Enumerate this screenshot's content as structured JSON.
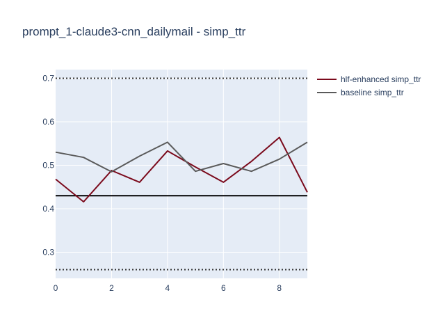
{
  "chart_data": {
    "type": "line",
    "title": "prompt_1-claude3-cnn_dailymail - simp_ttr",
    "xlabel": "",
    "ylabel": "",
    "xlim": [
      0,
      9
    ],
    "ylim": [
      0.24,
      0.72
    ],
    "x_ticks": [
      0,
      2,
      4,
      6,
      8
    ],
    "x_tick_labels": [
      "0",
      "2",
      "4",
      "6",
      "8"
    ],
    "y_ticks": [
      0.3,
      0.4,
      0.5,
      0.6,
      0.7
    ],
    "y_tick_labels": [
      "0.3",
      "0.4",
      "0.5",
      "0.6",
      "0.7"
    ],
    "grid": true,
    "legend_position": "top-right",
    "x": [
      0,
      1,
      2,
      3,
      4,
      5,
      6,
      7,
      8,
      9
    ],
    "series": [
      {
        "name": "hlf-enhanced simp_ttr",
        "color": "#7b0a1c",
        "values": [
          0.468,
          0.416,
          0.488,
          0.461,
          0.533,
          0.496,
          0.461,
          0.509,
          0.564,
          0.438
        ]
      },
      {
        "name": "baseline simp_ttr",
        "color": "#5a5a5a",
        "values": [
          0.53,
          0.518,
          0.485,
          0.521,
          0.553,
          0.486,
          0.504,
          0.486,
          0.514,
          0.553
        ]
      }
    ],
    "reference_lines": [
      {
        "y": 0.7,
        "style": "dotted",
        "color": "#333333"
      },
      {
        "y": 0.43,
        "style": "solid",
        "color": "#000000"
      },
      {
        "y": 0.26,
        "style": "dotted",
        "color": "#333333"
      }
    ],
    "colors": {
      "plot_background": "#e5ecf6",
      "grid": "#ffffff",
      "text": "#2a3f5f"
    }
  }
}
